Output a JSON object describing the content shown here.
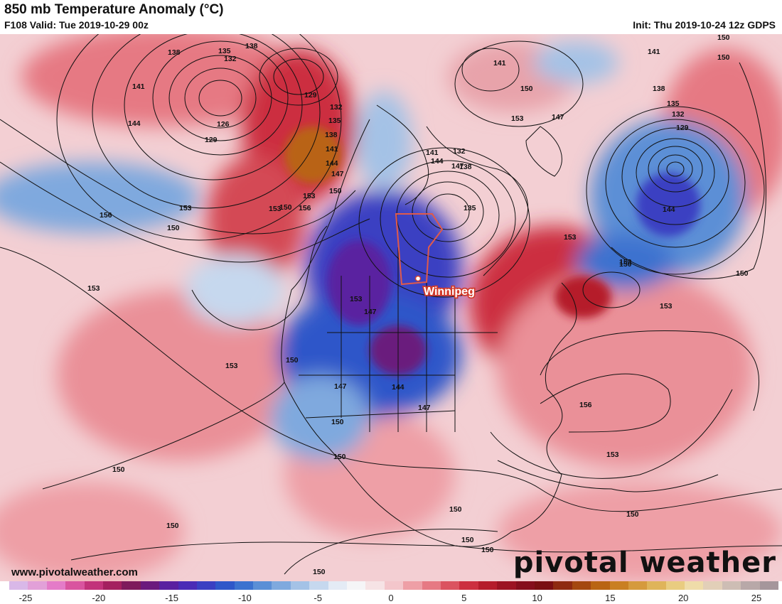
{
  "header": {
    "title": "850 mb Temperature Anomaly (°C)",
    "valid": "F108 Valid: Tue 2019-10-29 00z",
    "init": "Init: Thu 2019-10-24 12z GDPS"
  },
  "map": {
    "city_label": "Winnipeg",
    "contour_labels": [
      "138",
      "135",
      "132",
      "138",
      "141",
      "144",
      "126",
      "129",
      "129",
      "132",
      "135",
      "138",
      "141",
      "144",
      "147",
      "150",
      "153",
      "150",
      "153",
      "156",
      "153",
      "150",
      "153",
      "153",
      "150",
      "147",
      "150",
      "144",
      "147",
      "147",
      "144",
      "141",
      "138",
      "132",
      "135",
      "141",
      "150",
      "153",
      "147",
      "153",
      "150",
      "153",
      "150",
      "144",
      "135",
      "132",
      "129",
      "141",
      "138",
      "150",
      "150",
      "153",
      "156",
      "153",
      "150",
      "150",
      "150",
      "150",
      "150",
      "150",
      "150",
      "150",
      "156",
      "153",
      "147"
    ]
  },
  "footer": {
    "website": "www.pivotalweather.com",
    "brand": "pivotal weather"
  },
  "colorbar": {
    "ticks": [
      "-25",
      "-20",
      "-15",
      "-10",
      "-5",
      "0",
      "5",
      "10",
      "15",
      "20",
      "25"
    ],
    "colors": [
      "#d9b8e8",
      "#e2a0d8",
      "#e47bc8",
      "#d9549f",
      "#c2337a",
      "#a4205f",
      "#7e1a5c",
      "#6b1a7d",
      "#5a20a0",
      "#4a2bb6",
      "#3a3fc2",
      "#2f57c9",
      "#3c72cf",
      "#5b8fd6",
      "#7fa9de",
      "#a4c2e6",
      "#c6d8ee",
      "#e4ebf5",
      "#f5f5f7",
      "#f6e3e5",
      "#f3c6cb",
      "#ee9fa6",
      "#e67983",
      "#db5360",
      "#cc2f3f",
      "#b51c2b",
      "#9c1322",
      "#850e1c",
      "#7a0f12",
      "#8e2a10",
      "#a4470f",
      "#b96412",
      "#c97f22",
      "#d59a3d",
      "#dfb45a",
      "#e9cc80",
      "#efdca9",
      "#e2cfb8",
      "#cdbdb4",
      "#b8a8a8",
      "#a5969b"
    ]
  }
}
